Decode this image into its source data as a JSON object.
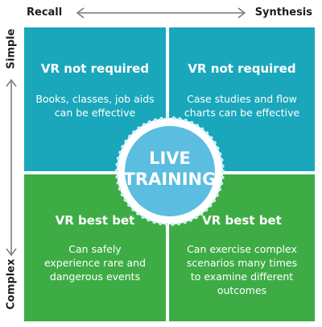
{
  "axes": {
    "left_end": "Recall",
    "right_end": "Synthesis",
    "top_end": "Simple",
    "bottom_end": "Complex"
  },
  "quadrants": {
    "top_left": {
      "title": "VR not required",
      "body": "Books, classes, job aids can be effective"
    },
    "top_right": {
      "title": "VR not required",
      "body": "Case studies and flow charts can be effective"
    },
    "bottom_left": {
      "title": "VR best bet",
      "body": "Can safely experience rare and dangerous events"
    },
    "bottom_right": {
      "title": "VR best bet",
      "body": "Can exercise complex scenarios many times to examine different outcomes"
    }
  },
  "center": {
    "line1": "LIVE",
    "line2": "TRAINING"
  },
  "colors": {
    "top_quadrants": "#1aa7bc",
    "bottom_quadrants": "#3eac45",
    "center_circle": "#5bbde0",
    "dots": "#cfeff7"
  }
}
